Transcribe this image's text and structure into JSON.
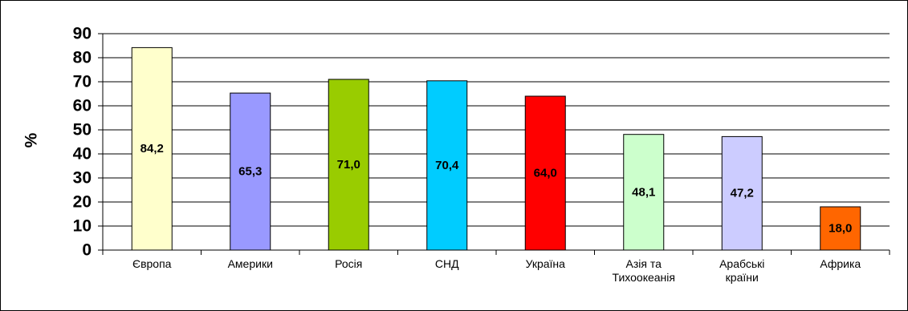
{
  "chart_data": {
    "type": "bar",
    "categories": [
      [
        "Європа"
      ],
      [
        "Америки"
      ],
      [
        "Росія"
      ],
      [
        "СНД"
      ],
      [
        "Україна"
      ],
      [
        "Азія та",
        "Тихоокеанія"
      ],
      [
        "Арабські",
        "країни"
      ],
      [
        "Африка"
      ]
    ],
    "values": [
      84.2,
      65.3,
      71.0,
      70.4,
      64.0,
      48.1,
      47.2,
      18.0
    ],
    "value_labels": [
      "84,2",
      "65,3",
      "71,0",
      "70,4",
      "64,0",
      "48,1",
      "47,2",
      "18,0"
    ],
    "colors": [
      "#ffffcc",
      "#9999ff",
      "#99cc00",
      "#00ccff",
      "#ff0000",
      "#ccffcc",
      "#ccccff",
      "#ff6600"
    ],
    "ylabel": "%",
    "xlabel": "",
    "ylim": [
      0,
      90
    ],
    "yticks": [
      0,
      10,
      20,
      30,
      40,
      50,
      60,
      70,
      80,
      90
    ],
    "grid": true,
    "legend": "none"
  }
}
